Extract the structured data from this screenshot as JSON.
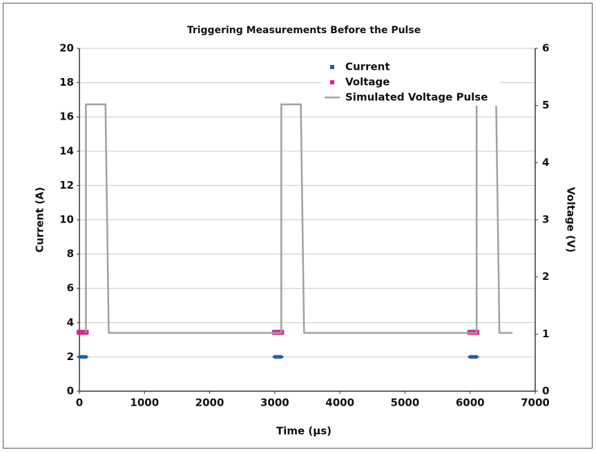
{
  "chart_data": {
    "type": "line",
    "title": "Triggering Measurements Before the Pulse",
    "xlabel": "Time (µs)",
    "ylabel": "Current (A)",
    "y2label": "Voltage (V)",
    "xlim": [
      0,
      7000
    ],
    "xticks": [
      0,
      1000,
      2000,
      3000,
      4000,
      5000,
      6000,
      7000
    ],
    "ylim": [
      0,
      20
    ],
    "yticks": [
      0,
      2,
      4,
      6,
      8,
      10,
      12,
      14,
      16,
      18,
      20
    ],
    "y2lim": [
      0,
      6
    ],
    "y2ticks": [
      0,
      1,
      2,
      3,
      4,
      5,
      6
    ],
    "grid": true,
    "legend": "top",
    "series": [
      {
        "name": "Current",
        "color": "#1f5fa8",
        "mode": "markers",
        "x": [
          0,
          25,
          50,
          75,
          100,
          3000,
          3025,
          3050,
          3075,
          3100,
          6000,
          6025,
          6050,
          6075,
          6100
        ],
        "values": [
          2,
          2,
          2,
          2,
          2,
          2,
          2,
          2,
          2,
          2,
          2,
          2,
          2,
          2,
          2
        ]
      },
      {
        "name": "Voltage",
        "color": "#d6268a",
        "mode": "markers",
        "axis": "y2",
        "x": [
          0,
          25,
          50,
          75,
          100,
          3000,
          3025,
          3050,
          3075,
          3100,
          6000,
          6025,
          6050,
          6075,
          6100
        ],
        "values": [
          1.03,
          1.03,
          1.03,
          1.03,
          1.03,
          1.03,
          1.03,
          1.03,
          1.03,
          1.03,
          1.03,
          1.03,
          1.03,
          1.03,
          1.03
        ]
      },
      {
        "name": "Simulated Voltage Pulse",
        "color": "#a0a0a0",
        "mode": "line",
        "axis": "y2",
        "x": [
          100,
          100,
          400,
          450,
          3100,
          3100,
          3400,
          3450,
          6100,
          6100,
          6400,
          6450,
          6650
        ],
        "values": [
          1.02,
          5.02,
          5.02,
          1.02,
          1.02,
          5.02,
          5.02,
          1.02,
          1.02,
          5.02,
          5.02,
          1.02,
          1.02
        ]
      }
    ]
  }
}
